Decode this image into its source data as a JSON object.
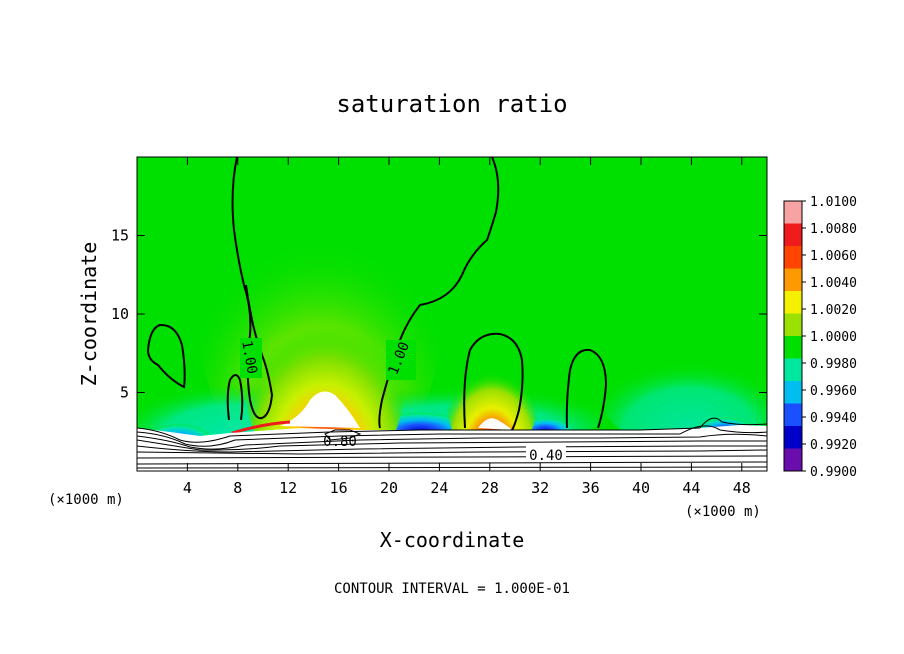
{
  "chart_data": {
    "type": "heatmap",
    "title": "saturation ratio",
    "xlabel": "X-coordinate",
    "ylabel": "Z-coordinate",
    "x_unit": "(×1000 m)",
    "y_unit": "(×1000 m)",
    "xlim": [
      0,
      50
    ],
    "ylim": [
      0,
      20
    ],
    "x_ticks": [
      4,
      8,
      12,
      16,
      20,
      24,
      28,
      32,
      36,
      40,
      44,
      48
    ],
    "y_ticks": [
      5,
      10,
      15
    ],
    "colorbar": {
      "levels": [
        "1.0100",
        "1.0080",
        "1.0060",
        "1.0040",
        "1.0020",
        "1.0000",
        "0.9980",
        "0.9960",
        "0.9940",
        "0.9920",
        "0.9900"
      ],
      "colors": [
        "#f7a3a3",
        "#ee1c1c",
        "#ff4500",
        "#ff9900",
        "#f5f000",
        "#9be000",
        "#00e000",
        "#00e8a0",
        "#00bff0",
        "#1a50ff",
        "#0000c8",
        "#6a0dad"
      ]
    },
    "contour_labels": [
      {
        "text": "1.00",
        "x": 9.1,
        "z": 7.7
      },
      {
        "text": "1.00",
        "x": 21.2,
        "z": 7.5
      },
      {
        "text": "0.80",
        "x": 16.2,
        "z": 1.7
      },
      {
        "text": "0.40",
        "x": 34.4,
        "z": 0.9
      }
    ],
    "footer": "CONTOUR INTERVAL = 1.000E-01"
  }
}
